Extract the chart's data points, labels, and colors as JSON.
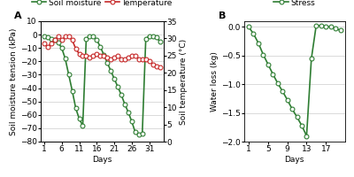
{
  "panel_A": {
    "soil_moisture_days": [
      1,
      2,
      3,
      4,
      5,
      6,
      7,
      8,
      9,
      10,
      11,
      12,
      13,
      14,
      15,
      16,
      17,
      18,
      19,
      20,
      21,
      22,
      23,
      24,
      25,
      26,
      27,
      28,
      29,
      30,
      31,
      32,
      33,
      34
    ],
    "soil_moisture_values": [
      -1,
      -2,
      -3,
      -4,
      -6,
      -10,
      -18,
      -30,
      -42,
      -55,
      -63,
      -68,
      -3,
      -1,
      -1,
      -4,
      -9,
      -15,
      -21,
      -27,
      -33,
      -39,
      -45,
      -52,
      -58,
      -65,
      -73,
      -75,
      -74,
      -3,
      -1,
      -1,
      -2,
      -5
    ],
    "temperature_days": [
      1,
      2,
      3,
      4,
      5,
      6,
      7,
      8,
      9,
      10,
      11,
      12,
      13,
      14,
      15,
      16,
      17,
      18,
      19,
      20,
      21,
      22,
      23,
      24,
      25,
      26,
      27,
      28,
      29,
      30,
      31,
      32,
      33,
      34
    ],
    "temperature_values": [
      28.5,
      27.5,
      28.5,
      29.5,
      30.5,
      29.5,
      30.5,
      30.5,
      29.5,
      27,
      25.5,
      25,
      25,
      24.5,
      25,
      25.5,
      25,
      25,
      24.5,
      24,
      24.5,
      25,
      24,
      24,
      24.5,
      25,
      25,
      24,
      24,
      24,
      23.5,
      22.5,
      22,
      21.5
    ],
    "soil_moisture_color": "#2e7d32",
    "temperature_color": "#c62828",
    "ylabel_left": "Soil moisture tension (kPa)",
    "ylabel_right": "Soil temperature (°C)",
    "xlabel": "Days",
    "ylim_left": [
      -80,
      10
    ],
    "ylim_right": [
      0,
      35
    ],
    "yticks_left": [
      10,
      0,
      -10,
      -20,
      -30,
      -40,
      -50,
      -60,
      -70,
      -80
    ],
    "yticks_right": [
      0,
      5,
      10,
      15,
      20,
      25,
      30,
      35
    ],
    "xticks": [
      1,
      6,
      11,
      16,
      21,
      26,
      31
    ],
    "legend_soil": "Soil moisture",
    "legend_temp": "Temperature",
    "panel_label": "A"
  },
  "panel_B": {
    "stress_days": [
      1,
      2,
      3,
      4,
      5,
      6,
      7,
      8,
      9,
      10,
      11,
      12,
      13,
      14,
      15,
      16,
      17,
      18,
      19,
      20
    ],
    "stress_values": [
      0.0,
      -0.12,
      -0.28,
      -0.48,
      -0.65,
      -0.82,
      -0.98,
      -1.12,
      -1.27,
      -1.43,
      -1.57,
      -1.72,
      -1.9,
      -0.55,
      0.03,
      0.02,
      0.01,
      0.0,
      -0.02,
      -0.06
    ],
    "stress_color": "#2e7d32",
    "ylabel": "Water loss (kg)",
    "xlabel": "Days",
    "ylim": [
      -2.0,
      0.1
    ],
    "yticks": [
      0.0,
      -0.5,
      -1.0,
      -1.5,
      -2.0
    ],
    "xticks": [
      1,
      5,
      9,
      13,
      17
    ],
    "legend_stress": "Stress",
    "panel_label": "B"
  },
  "background_color": "#ffffff",
  "marker": "o",
  "markersize": 3.5,
  "linewidth": 1.2,
  "grid_color": "#cccccc",
  "tick_fontsize": 6.5,
  "label_fontsize": 6.5,
  "legend_fontsize": 6.5
}
